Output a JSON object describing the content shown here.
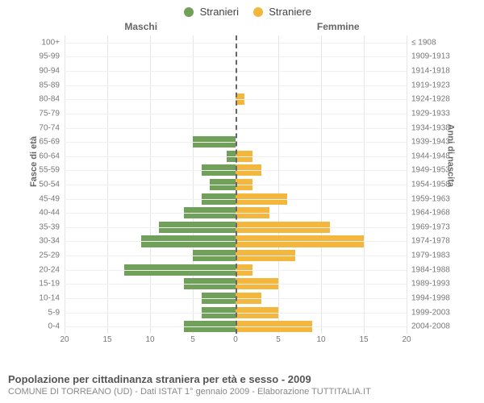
{
  "legend": {
    "male": {
      "label": "Stranieri",
      "color": "#71a05a"
    },
    "female": {
      "label": "Straniere",
      "color": "#f3b73e"
    }
  },
  "headers": {
    "male": "Maschi",
    "female": "Femmine"
  },
  "axis_titles": {
    "left": "Fasce di età",
    "right": "Anni di nascita"
  },
  "chart": {
    "type": "population-pyramid",
    "x_max": 20,
    "x_ticks": [
      0,
      5,
      10,
      15,
      20
    ],
    "background_color": "#ffffff",
    "grid_color": "#e6e6e6",
    "grid_h_color": "#f0f0f0",
    "center_line_color": "#666666",
    "tick_fontsize": 10,
    "label_color": "#777777",
    "rows": [
      {
        "age": "100+",
        "birth": "≤ 1908",
        "m": 0,
        "f": 0
      },
      {
        "age": "95-99",
        "birth": "1909-1913",
        "m": 0,
        "f": 0
      },
      {
        "age": "90-94",
        "birth": "1914-1918",
        "m": 0,
        "f": 0
      },
      {
        "age": "85-89",
        "birth": "1919-1923",
        "m": 0,
        "f": 0
      },
      {
        "age": "80-84",
        "birth": "1924-1928",
        "m": 0,
        "f": 1
      },
      {
        "age": "75-79",
        "birth": "1929-1933",
        "m": 0,
        "f": 0
      },
      {
        "age": "70-74",
        "birth": "1934-1938",
        "m": 0,
        "f": 0
      },
      {
        "age": "65-69",
        "birth": "1939-1943",
        "m": 5,
        "f": 0
      },
      {
        "age": "60-64",
        "birth": "1944-1948",
        "m": 1,
        "f": 2
      },
      {
        "age": "55-59",
        "birth": "1949-1953",
        "m": 4,
        "f": 3
      },
      {
        "age": "50-54",
        "birth": "1954-1958",
        "m": 3,
        "f": 2
      },
      {
        "age": "45-49",
        "birth": "1959-1963",
        "m": 4,
        "f": 6
      },
      {
        "age": "40-44",
        "birth": "1964-1968",
        "m": 6,
        "f": 4
      },
      {
        "age": "35-39",
        "birth": "1969-1973",
        "m": 9,
        "f": 11
      },
      {
        "age": "30-34",
        "birth": "1974-1978",
        "m": 11,
        "f": 15
      },
      {
        "age": "25-29",
        "birth": "1979-1983",
        "m": 5,
        "f": 7
      },
      {
        "age": "20-24",
        "birth": "1984-1988",
        "m": 13,
        "f": 2
      },
      {
        "age": "15-19",
        "birth": "1989-1993",
        "m": 6,
        "f": 5
      },
      {
        "age": "10-14",
        "birth": "1994-1998",
        "m": 4,
        "f": 3
      },
      {
        "age": "5-9",
        "birth": "1999-2003",
        "m": 4,
        "f": 5
      },
      {
        "age": "0-4",
        "birth": "2004-2008",
        "m": 6,
        "f": 9
      }
    ]
  },
  "footer": {
    "title": "Popolazione per cittadinanza straniera per età e sesso - 2009",
    "source": "COMUNE DI TORREANO (UD) - Dati ISTAT 1° gennaio 2009 - Elaborazione TUTTITALIA.IT"
  }
}
